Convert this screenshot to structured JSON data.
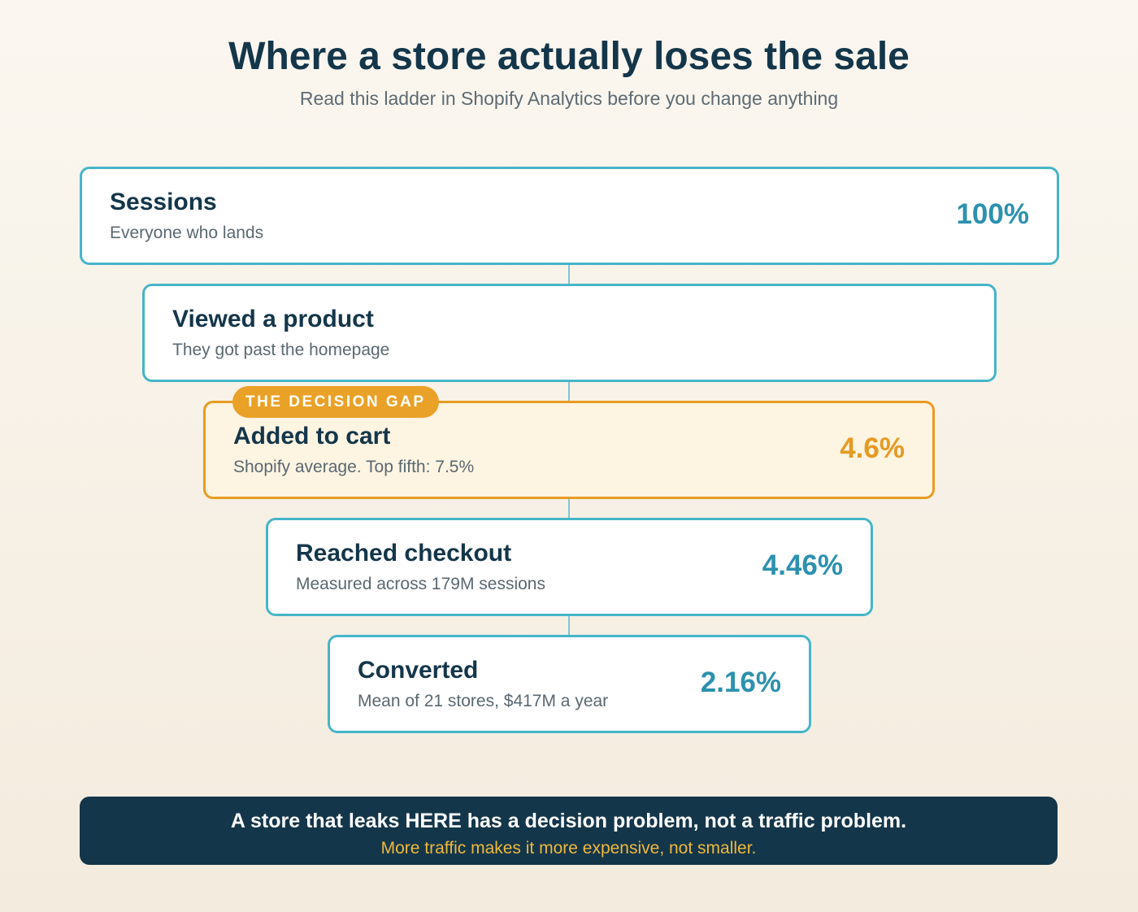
{
  "header": {
    "title": "Where a store actually loses the sale",
    "subtitle": "Read this ladder in Shopify Analytics before you change anything"
  },
  "steps": [
    {
      "label": "Sessions",
      "description": "Everyone who lands",
      "value": "100%"
    },
    {
      "label": "Viewed a product",
      "description": "They got past the homepage",
      "value": ""
    },
    {
      "label": "Added to cart",
      "description": "Shopify average. Top fifth: 7.5%",
      "value": "4.6%",
      "badge": "THE DECISION GAP"
    },
    {
      "label": "Reached checkout",
      "description": "Measured across 179M sessions",
      "value": "4.46%"
    },
    {
      "label": "Converted",
      "description": "Mean of 21 stores, $417M a year",
      "value": "2.16%"
    }
  ],
  "callout": {
    "headline": "A store that leaks HERE has a decision problem, not a traffic problem.",
    "subline": "More traffic makes it more expensive, not smaller."
  },
  "colors": {
    "accent_teal": "#45b5c9",
    "highlight_orange": "#e89b22",
    "navy": "#14364a",
    "callout_yellow": "#f0b83c"
  }
}
